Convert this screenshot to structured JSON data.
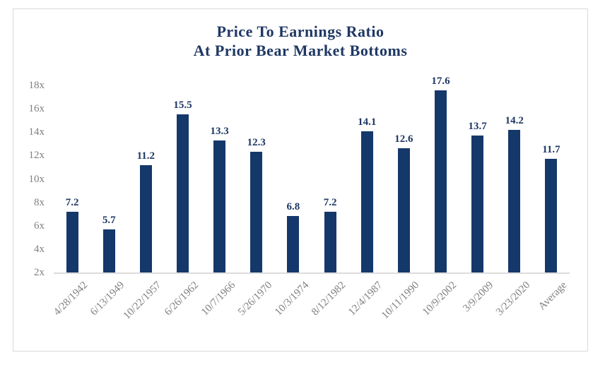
{
  "title": {
    "line1": "Price To Earnings Ratio",
    "line2": "At Prior Bear Market Bottoms"
  },
  "colors": {
    "bar": "#15386b",
    "title_text": "#1f3864",
    "value_label_text": "#1f3864",
    "axis_tick_text": "#808080",
    "axis_line": "#dcdcdc",
    "frame_border": "#d9d9d9",
    "background": "#ffffff"
  },
  "chart_data": {
    "type": "bar",
    "title": "Price To Earnings Ratio At Prior Bear Market Bottoms",
    "categories": [
      "4/28/1942",
      "6/13/1949",
      "10/22/1957",
      "6/26/1962",
      "10/7/1966",
      "5/26/1970",
      "10/3/1974",
      "8/12/1982",
      "12/4/1987",
      "10/11/1990",
      "10/9/2002",
      "3/9/2009",
      "3/23/2020",
      "Average"
    ],
    "values": [
      7.2,
      5.7,
      11.2,
      15.5,
      13.3,
      12.3,
      6.8,
      7.2,
      14.1,
      12.6,
      17.6,
      13.7,
      14.2,
      11.7
    ],
    "data_labels": [
      "7.2",
      "5.7",
      "11.2",
      "15.5",
      "13.3",
      "12.3",
      "6.8",
      "7.2",
      "14.1",
      "12.6",
      "17.6",
      "13.7",
      "14.2",
      "11.7"
    ],
    "y_ticks": [
      "2x",
      "4x",
      "6x",
      "8x",
      "10x",
      "12x",
      "14x",
      "16x",
      "18x"
    ],
    "ylim": [
      2,
      18
    ],
    "baseline_value": 2,
    "xlabel": "",
    "ylabel": "",
    "grid": false,
    "legend": false,
    "x_label_rotation_deg": 45
  }
}
